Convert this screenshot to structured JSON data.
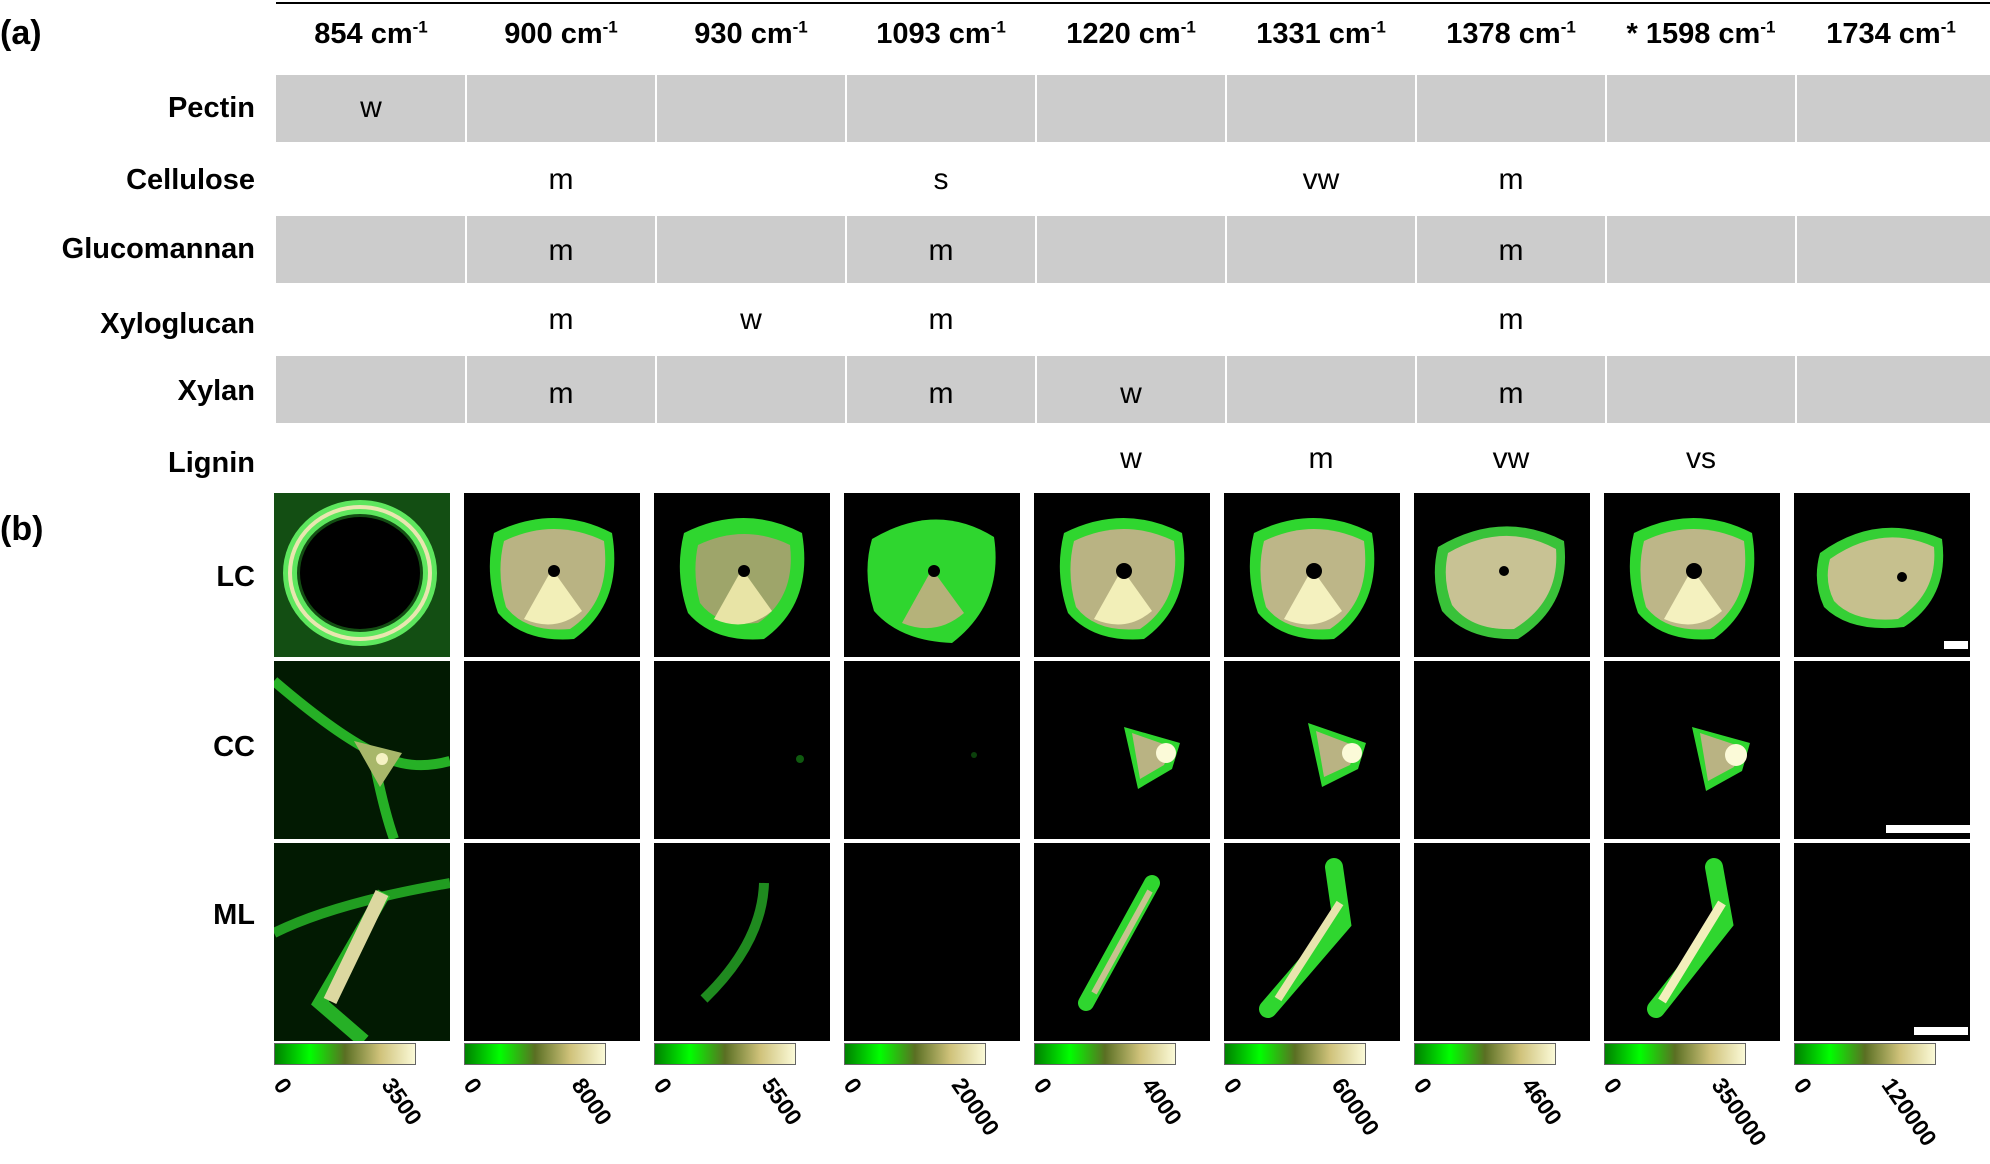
{
  "panel_a_label": "(a)",
  "panel_b_label": "(b)",
  "columns": [
    {
      "wavenumber": "854 cm",
      "sup": "-1"
    },
    {
      "wavenumber": "900 cm",
      "sup": "-1"
    },
    {
      "wavenumber": "930 cm",
      "sup": "-1"
    },
    {
      "wavenumber": "1093 cm",
      "sup": "-1"
    },
    {
      "wavenumber": "1220 cm",
      "sup": "-1"
    },
    {
      "wavenumber": "1331 cm",
      "sup": "-1"
    },
    {
      "wavenumber": "1378 cm",
      "sup": "-1"
    },
    {
      "wavenumber": "* 1598 cm",
      "sup": "-1"
    },
    {
      "wavenumber": "1734 cm",
      "sup": "-1"
    }
  ],
  "table_rows": [
    {
      "label": "Pectin",
      "cells": [
        "w",
        "",
        "",
        "",
        "",
        "",
        "",
        "",
        ""
      ]
    },
    {
      "label": "Cellulose",
      "cells": [
        "",
        "m",
        "",
        "s",
        "",
        "vw",
        "m",
        "",
        ""
      ]
    },
    {
      "label": "Glucomannan",
      "cells": [
        "",
        "m",
        "",
        "m",
        "",
        "",
        "m",
        "",
        ""
      ]
    },
    {
      "label": "Xyloglucan",
      "cells": [
        "",
        "m",
        "w",
        "m",
        "",
        "",
        "m",
        "",
        ""
      ]
    },
    {
      "label": "Xylan",
      "cells": [
        "",
        "m",
        "",
        "m",
        "w",
        "",
        "m",
        "",
        ""
      ]
    },
    {
      "label": "Lignin",
      "cells": [
        "",
        "",
        "",
        "",
        "w",
        "m",
        "vw",
        "vs",
        ""
      ]
    }
  ],
  "image_rows": [
    {
      "label": "LC"
    },
    {
      "label": "CC"
    },
    {
      "label": "ML"
    }
  ],
  "colorbar_ranges": [
    {
      "min": "0",
      "max": "3500"
    },
    {
      "min": "0",
      "max": "8000"
    },
    {
      "min": "0",
      "max": "5500"
    },
    {
      "min": "0",
      "max": "20000"
    },
    {
      "min": "0",
      "max": "4000"
    },
    {
      "min": "0",
      "max": "60000"
    },
    {
      "min": "0",
      "max": "4600"
    },
    {
      "min": "0",
      "max": "350000"
    },
    {
      "min": "0",
      "max": "120000"
    }
  ],
  "colors": {
    "band": "#cccccc",
    "colormap": [
      "#008000",
      "#00ff00",
      "#5a6f23",
      "#cfc27a",
      "#fbfad8"
    ]
  }
}
